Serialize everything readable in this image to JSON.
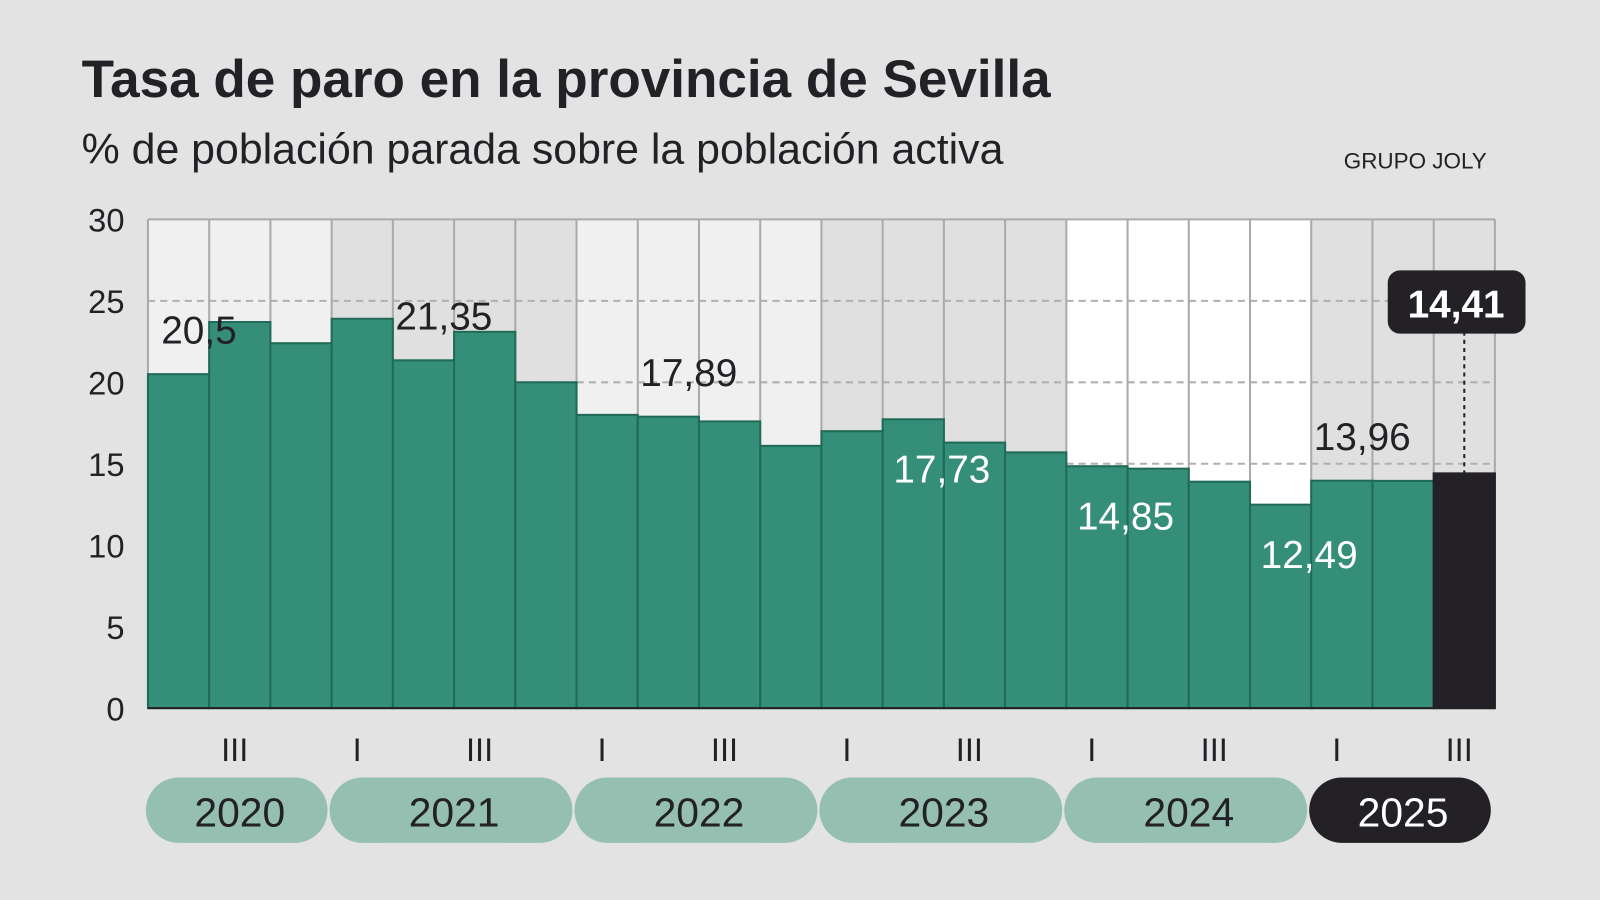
{
  "title": "Tasa de paro en la provincia de Sevilla",
  "subtitle": "% de población parada sobre la población activa",
  "source": "GRUPO JOLY",
  "colors": {
    "background": "#e3e3e3",
    "bar": "#358e78",
    "highlight": "#232126",
    "year_pill": "#95bfb0",
    "grid": "#b0b0b0"
  },
  "chart_data": {
    "type": "bar",
    "title": "Tasa de paro en la provincia de Sevilla",
    "subtitle": "% de población parada sobre la población activa",
    "ylim": [
      0,
      30
    ],
    "yticks": [
      0,
      5,
      10,
      15,
      20,
      25,
      30
    ],
    "grid": true,
    "categories": [
      "2020 II",
      "2020 III",
      "2020 IV",
      "2021 I",
      "2021 II",
      "2021 III",
      "2021 IV",
      "2022 I",
      "2022 II",
      "2022 III",
      "2022 IV",
      "2023 I",
      "2023 II",
      "2023 III",
      "2023 IV",
      "2024 I",
      "2024 II",
      "2024 III",
      "2024 IV",
      "2025 I",
      "2025 II",
      "2025 III"
    ],
    "values": [
      20.5,
      23.7,
      22.4,
      23.9,
      21.35,
      23.1,
      20.0,
      18.0,
      17.89,
      17.6,
      16.1,
      17.0,
      17.73,
      16.3,
      15.7,
      14.85,
      14.7,
      13.9,
      12.49,
      13.96,
      13.95,
      14.41
    ],
    "highlight_index": 21,
    "data_labels": [
      {
        "category": "2020 II",
        "text": "20,5",
        "position": "above"
      },
      {
        "category": "2021 II",
        "text": "21,35",
        "position": "above"
      },
      {
        "category": "2022 II",
        "text": "17,89",
        "position": "above"
      },
      {
        "category": "2023 II",
        "text": "17,73",
        "position": "inside"
      },
      {
        "category": "2024 I",
        "text": "14,85",
        "position": "inside"
      },
      {
        "category": "2024 IV",
        "text": "12,49",
        "position": "inside"
      },
      {
        "category": "2025 I",
        "text": "13,96",
        "position": "above"
      },
      {
        "category": "2025 III",
        "text": "14,41",
        "position": "callout"
      }
    ],
    "quarter_ticks": [
      {
        "category": "2020 III",
        "text": "III"
      },
      {
        "category": "2021 I",
        "text": "I"
      },
      {
        "category": "2021 III",
        "text": "III"
      },
      {
        "category": "2022 I",
        "text": "I"
      },
      {
        "category": "2022 III",
        "text": "III"
      },
      {
        "category": "2023 I",
        "text": "I"
      },
      {
        "category": "2023 III",
        "text": "III"
      },
      {
        "category": "2024 I",
        "text": "I"
      },
      {
        "category": "2024 III",
        "text": "III"
      },
      {
        "category": "2025 I",
        "text": "I"
      },
      {
        "category": "2025 III",
        "text": "III"
      }
    ],
    "years": [
      {
        "text": "2020",
        "shade": "#f0f0f0"
      },
      {
        "text": "2021",
        "shade": "#e0e0e0"
      },
      {
        "text": "2022",
        "shade": "#f0f0f0"
      },
      {
        "text": "2023",
        "shade": "#e0e0e0"
      },
      {
        "text": "2024",
        "shade": "#ffffff"
      },
      {
        "text": "2025",
        "shade": "#e0e0e0"
      }
    ]
  }
}
